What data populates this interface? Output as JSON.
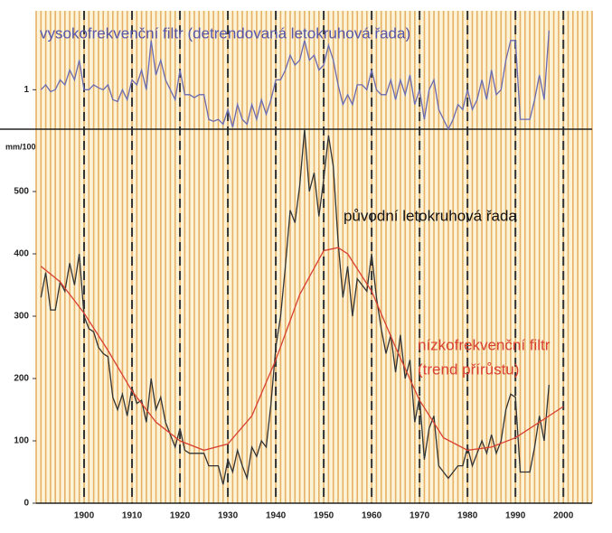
{
  "chart_data": [
    {
      "type": "line",
      "xlim": [
        1890,
        2006
      ],
      "ylim": [
        0.6,
        1.8
      ],
      "yticks": [
        1
      ],
      "series": [
        {
          "name": "vysokofrekvenční filtr (detrendovaná letokruhová řada)",
          "color": "#6a6ab0",
          "x": [
            1891,
            1892,
            1893,
            1894,
            1895,
            1896,
            1897,
            1898,
            1899,
            1900,
            1901,
            1902,
            1903,
            1904,
            1905,
            1906,
            1907,
            1908,
            1909,
            1910,
            1911,
            1912,
            1913,
            1914,
            1915,
            1916,
            1917,
            1918,
            1919,
            1920,
            1921,
            1922,
            1923,
            1924,
            1925,
            1926,
            1927,
            1928,
            1929,
            1930,
            1931,
            1932,
            1933,
            1934,
            1935,
            1936,
            1937,
            1938,
            1939,
            1940,
            1941,
            1942,
            1943,
            1944,
            1945,
            1946,
            1947,
            1948,
            1949,
            1950,
            1951,
            1952,
            1953,
            1954,
            1955,
            1956,
            1957,
            1958,
            1959,
            1960,
            1961,
            1962,
            1963,
            1964,
            1965,
            1966,
            1967,
            1968,
            1969,
            1970,
            1971,
            1972,
            1973,
            1974,
            1975,
            1976,
            1977,
            1978,
            1979,
            1980,
            1981,
            1982,
            1983,
            1984,
            1985,
            1986,
            1987,
            1988,
            1989,
            1990,
            1991,
            1992,
            1993,
            1994,
            1995,
            1996,
            1997
          ],
          "values": [
            1.0,
            1.05,
            0.98,
            1.0,
            1.1,
            1.05,
            1.2,
            1.1,
            1.3,
            1.0,
            1.0,
            1.05,
            1.02,
            1.0,
            1.05,
            0.9,
            0.88,
            1.0,
            0.9,
            1.1,
            1.05,
            1.2,
            1.0,
            1.5,
            1.15,
            1.3,
            1.1,
            1.0,
            0.9,
            1.2,
            0.95,
            0.95,
            0.92,
            0.95,
            0.95,
            0.7,
            0.68,
            0.7,
            0.65,
            0.8,
            0.62,
            0.85,
            0.7,
            0.65,
            0.85,
            0.7,
            0.9,
            0.75,
            0.9,
            1.1,
            1.1,
            1.2,
            1.35,
            1.25,
            1.3,
            1.5,
            1.3,
            1.35,
            1.2,
            1.25,
            1.45,
            1.3,
            1.05,
            0.85,
            0.95,
            0.85,
            1.05,
            1.05,
            1.0,
            1.2,
            1.0,
            0.95,
            0.95,
            1.1,
            0.9,
            1.1,
            0.95,
            1.15,
            0.85,
            1.0,
            0.7,
            1.0,
            1.1,
            0.8,
            0.7,
            0.6,
            0.7,
            0.85,
            0.8,
            1.0,
            0.8,
            0.9,
            1.1,
            0.9,
            1.2,
            0.95,
            1.0,
            1.3,
            1.5,
            1.5,
            0.7,
            0.7,
            0.7,
            0.9,
            1.15,
            0.9,
            1.6
          ]
        }
      ]
    },
    {
      "type": "line",
      "ylabel": "mm/100",
      "xlim": [
        1890,
        2006
      ],
      "ylim": [
        0,
        600
      ],
      "xticks": [
        1900,
        1910,
        1920,
        1930,
        1940,
        1950,
        1960,
        1970,
        1980,
        1990,
        2000
      ],
      "yticks": [
        0,
        100,
        200,
        300,
        400,
        500
      ],
      "series": [
        {
          "name": "původní letokruhová řada",
          "color": "#333333",
          "x": [
            1891,
            1892,
            1893,
            1894,
            1895,
            1896,
            1897,
            1898,
            1899,
            1900,
            1901,
            1902,
            1903,
            1904,
            1905,
            1906,
            1907,
            1908,
            1909,
            1910,
            1911,
            1912,
            1913,
            1914,
            1915,
            1916,
            1917,
            1918,
            1919,
            1920,
            1921,
            1922,
            1923,
            1924,
            1925,
            1926,
            1927,
            1928,
            1929,
            1930,
            1931,
            1932,
            1933,
            1934,
            1935,
            1936,
            1937,
            1938,
            1939,
            1940,
            1941,
            1942,
            1943,
            1944,
            1945,
            1946,
            1947,
            1948,
            1949,
            1950,
            1951,
            1952,
            1953,
            1954,
            1955,
            1956,
            1957,
            1958,
            1959,
            1960,
            1961,
            1962,
            1963,
            1964,
            1965,
            1966,
            1967,
            1968,
            1969,
            1970,
            1971,
            1972,
            1973,
            1974,
            1975,
            1976,
            1977,
            1978,
            1979,
            1980,
            1981,
            1982,
            1983,
            1984,
            1985,
            1986,
            1987,
            1988,
            1989,
            1990,
            1991,
            1992,
            1993,
            1994,
            1995,
            1996,
            1997
          ],
          "values": [
            330,
            370,
            310,
            310,
            355,
            340,
            385,
            350,
            400,
            300,
            280,
            275,
            250,
            240,
            235,
            170,
            150,
            175,
            140,
            185,
            160,
            165,
            130,
            200,
            150,
            170,
            130,
            110,
            90,
            120,
            85,
            80,
            80,
            80,
            80,
            60,
            60,
            60,
            30,
            70,
            50,
            85,
            60,
            40,
            90,
            75,
            100,
            90,
            160,
            250,
            300,
            380,
            470,
            450,
            510,
            600,
            500,
            530,
            460,
            520,
            590,
            540,
            420,
            330,
            380,
            300,
            360,
            350,
            340,
            400,
            330,
            280,
            240,
            270,
            210,
            270,
            200,
            230,
            130,
            170,
            70,
            120,
            140,
            60,
            50,
            40,
            50,
            60,
            60,
            90,
            60,
            80,
            100,
            80,
            110,
            80,
            100,
            150,
            175,
            170,
            50,
            50,
            50,
            90,
            140,
            100,
            190
          ]
        },
        {
          "label": [
            "nízkofrekvenční filtr",
            "(trend přírůstu)"
          ],
          "color": "#d84030",
          "x": [
            1891,
            1895,
            1900,
            1905,
            1910,
            1915,
            1920,
            1925,
            1930,
            1935,
            1940,
            1945,
            1950,
            1953,
            1955,
            1960,
            1965,
            1970,
            1975,
            1980,
            1985,
            1990,
            1995,
            2000
          ],
          "values": [
            380,
            355,
            305,
            245,
            180,
            130,
            100,
            85,
            95,
            140,
            230,
            335,
            405,
            410,
            400,
            340,
            250,
            165,
            105,
            85,
            90,
            105,
            130,
            155
          ]
        }
      ]
    }
  ]
}
